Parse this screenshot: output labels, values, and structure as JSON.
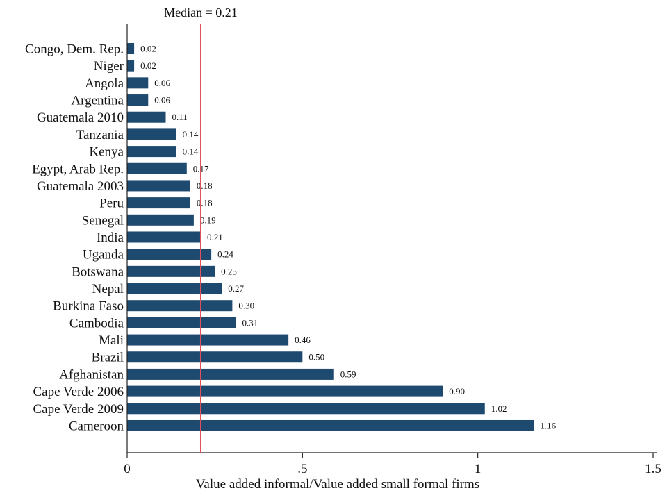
{
  "chart_data": {
    "type": "bar",
    "orientation": "horizontal",
    "categories": [
      "Congo, Dem. Rep.",
      "Niger",
      "Angola",
      "Argentina",
      "Guatemala 2010",
      "Tanzania",
      "Kenya",
      "Egypt, Arab Rep.",
      "Guatemala 2003",
      "Peru",
      "Senegal",
      "India",
      "Uganda",
      "Botswana",
      "Nepal",
      "Burkina Faso",
      "Cambodia",
      "Mali",
      "Brazil",
      "Afghanistan",
      "Cape Verde 2006",
      "Cape Verde 2009",
      "Cameroon"
    ],
    "values": [
      0.02,
      0.02,
      0.06,
      0.06,
      0.11,
      0.14,
      0.14,
      0.17,
      0.18,
      0.18,
      0.19,
      0.21,
      0.24,
      0.25,
      0.27,
      0.3,
      0.31,
      0.46,
      0.5,
      0.59,
      0.9,
      1.02,
      1.16
    ],
    "data_labels_shown": true,
    "title": "",
    "xlabel": "Value added informal/Value added small formal firms",
    "ylabel": "",
    "xlim": [
      0,
      1.5
    ],
    "xticks": [
      0,
      0.5,
      1,
      1.5
    ],
    "xtick_labels": [
      "0",
      ".5",
      "1",
      "1.5"
    ],
    "grid": false,
    "legend": "none",
    "annotation": {
      "type": "vertical-line",
      "value": 0.21,
      "label": "Median = 0.21"
    },
    "colors": {
      "bar": "#1f4a70",
      "median_line": "#e0505c",
      "axis": "#222222"
    }
  }
}
